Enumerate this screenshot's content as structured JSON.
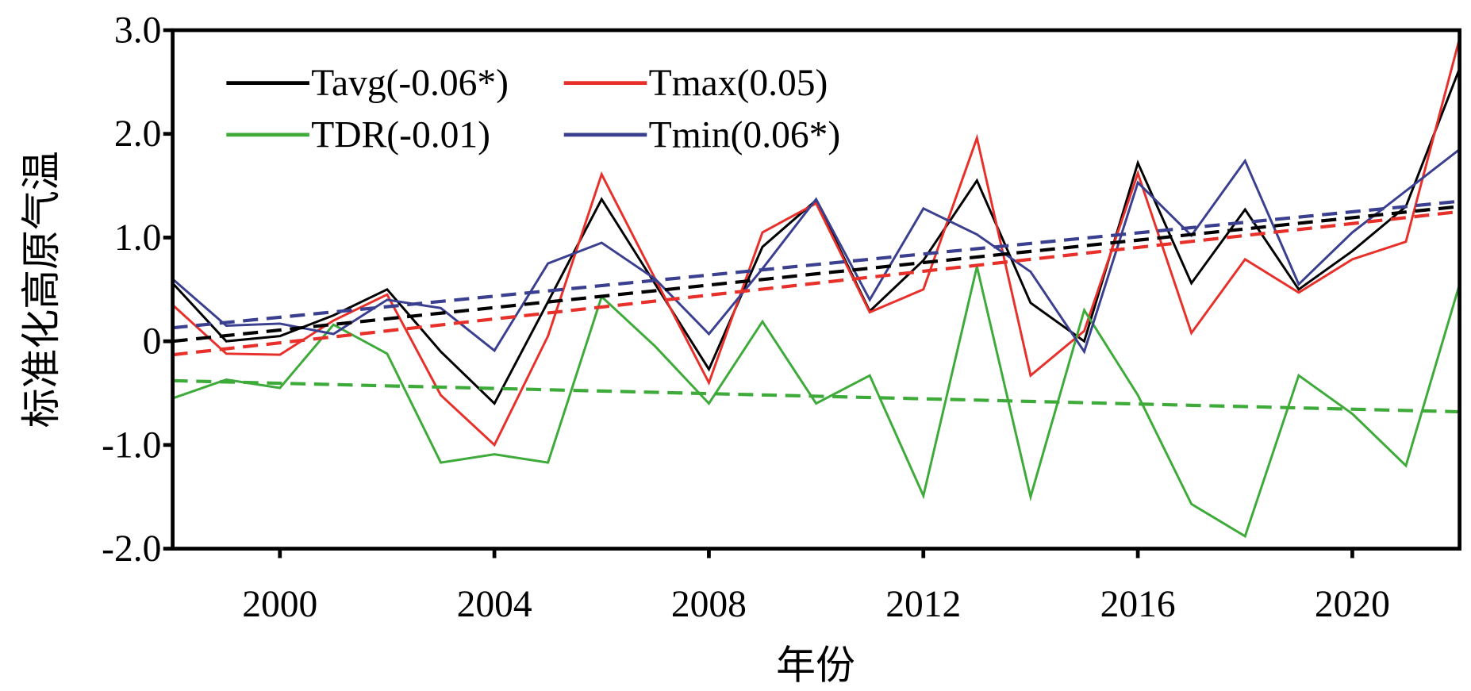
{
  "chart_data": {
    "type": "line",
    "title": "",
    "xlabel": "年份",
    "ylabel": "标准化高原气温",
    "xlim": [
      1998,
      2022
    ],
    "ylim": [
      -2.0,
      3.0
    ],
    "xticks": [
      2000,
      2004,
      2008,
      2012,
      2016,
      2020
    ],
    "yticks": [
      -2.0,
      -1.0,
      0,
      1.0,
      2.0,
      3.0
    ],
    "ytick_labels": [
      "-2.0",
      "-1.0",
      "0",
      "1.0",
      "2.0",
      "3.0"
    ],
    "grid": false,
    "legend_position": "top-left",
    "x": [
      1998,
      1999,
      2000,
      2001,
      2002,
      2003,
      2004,
      2005,
      2006,
      2007,
      2008,
      2009,
      2010,
      2011,
      2012,
      2013,
      2014,
      2015,
      2016,
      2017,
      2018,
      2019,
      2020,
      2021,
      2022
    ],
    "series": [
      {
        "name": "Tavg(-0.06*)",
        "color": "#000000",
        "values": [
          0.56,
          0.0,
          0.05,
          0.25,
          0.5,
          -0.1,
          -0.6,
          0.38,
          1.37,
          0.55,
          -0.27,
          0.91,
          1.36,
          0.29,
          0.78,
          1.55,
          0.37,
          0.0,
          1.72,
          0.56,
          1.27,
          0.5,
          0.87,
          1.3,
          2.63
        ],
        "trend": [
          0.0,
          1.3
        ]
      },
      {
        "name": "Tmax(0.05)",
        "color": "#e8302a",
        "values": [
          0.35,
          -0.12,
          -0.13,
          0.2,
          0.45,
          -0.52,
          -1.0,
          0.05,
          1.61,
          0.6,
          -0.4,
          1.05,
          1.33,
          0.28,
          0.5,
          1.96,
          -0.33,
          0.1,
          1.62,
          0.08,
          0.79,
          0.47,
          0.79,
          0.96,
          2.92
        ],
        "trend": [
          -0.13,
          1.25
        ]
      },
      {
        "name": "TDR(-0.01)",
        "color": "#3daa3a",
        "values": [
          -0.55,
          -0.37,
          -0.45,
          0.16,
          -0.12,
          -1.17,
          -1.09,
          -1.17,
          0.43,
          -0.05,
          -0.6,
          0.19,
          -0.6,
          -0.33,
          -1.49,
          0.72,
          -1.5,
          0.3,
          -0.52,
          -1.57,
          -1.88,
          -0.33,
          -0.7,
          -1.2,
          0.55
        ],
        "trend": [
          -0.38,
          -0.68
        ]
      },
      {
        "name": "Tmin(0.06*)",
        "color": "#3a3f8f",
        "values": [
          0.6,
          0.15,
          0.17,
          0.07,
          0.4,
          0.32,
          -0.09,
          0.75,
          0.95,
          0.6,
          0.07,
          0.7,
          1.37,
          0.4,
          1.28,
          1.03,
          0.67,
          -0.1,
          1.53,
          1.02,
          1.74,
          0.55,
          1.05,
          1.45,
          1.85
        ],
        "trend": [
          0.13,
          1.35
        ]
      }
    ]
  }
}
